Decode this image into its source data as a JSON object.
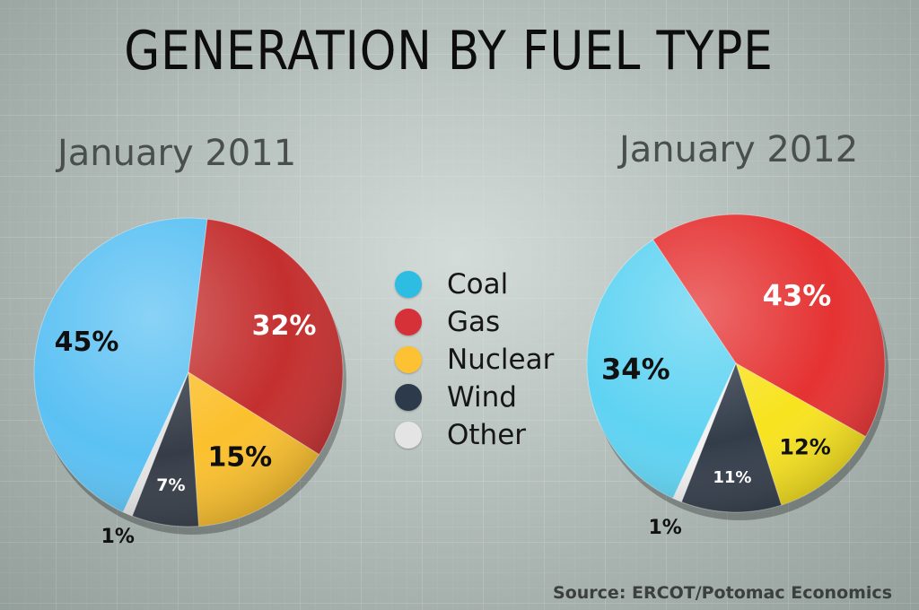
{
  "page": {
    "title": "GENERATION BY FUEL TYPE",
    "source": "Source: ERCOT/Potomac Economics"
  },
  "legend": [
    {
      "label": "Coal",
      "color": "#2dbde3"
    },
    {
      "label": "Gas",
      "color": "#d63138"
    },
    {
      "label": "Nuclear",
      "color": "#fcc233"
    },
    {
      "label": "Wind",
      "color": "#2d3a4c"
    },
    {
      "label": "Other",
      "color": "#e4e4e4"
    }
  ],
  "chart_data": [
    {
      "type": "pie",
      "title": "January 2011",
      "categories": [
        "Coal",
        "Gas",
        "Nuclear",
        "Wind",
        "Other"
      ],
      "values": [
        45,
        32,
        15,
        7,
        1
      ],
      "labels": [
        "45%",
        "32%",
        "15%",
        "7%",
        "1%"
      ],
      "colors": [
        "#5bc1f3",
        "#c42f2f",
        "#fbc02d",
        "#363d48",
        "#e4e4e4"
      ]
    },
    {
      "type": "pie",
      "title": "January 2012",
      "categories": [
        "Coal",
        "Gas",
        "Nuclear",
        "Wind",
        "Other"
      ],
      "values": [
        34,
        43,
        12,
        11,
        1
      ],
      "labels": [
        "34%",
        "43%",
        "12%",
        "11%",
        "1%"
      ],
      "colors": [
        "#5fd3f2",
        "#e53232",
        "#f8e31f",
        "#333d4a",
        "#f2f2f2"
      ]
    }
  ]
}
